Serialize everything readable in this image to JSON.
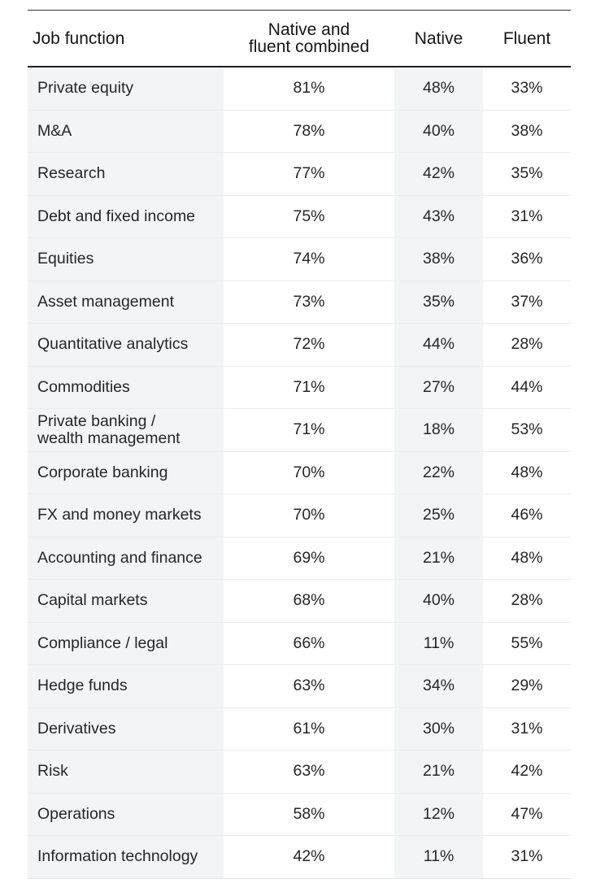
{
  "chart_data": {
    "type": "table",
    "columns": [
      "Job function",
      "Native and fluent combined",
      "Native",
      "Fluent"
    ],
    "rows": [
      {
        "job": "Private equity",
        "combined": "81%",
        "native": "48%",
        "fluent": "33%"
      },
      {
        "job": "M&A",
        "combined": "78%",
        "native": "40%",
        "fluent": "38%"
      },
      {
        "job": "Research",
        "combined": "77%",
        "native": "42%",
        "fluent": "35%"
      },
      {
        "job": "Debt and fixed income",
        "combined": "75%",
        "native": "43%",
        "fluent": "31%"
      },
      {
        "job": "Equities",
        "combined": "74%",
        "native": "38%",
        "fluent": "36%"
      },
      {
        "job": "Asset management",
        "combined": "73%",
        "native": "35%",
        "fluent": "37%"
      },
      {
        "job": "Quantitative analytics",
        "combined": "72%",
        "native": "44%",
        "fluent": "28%"
      },
      {
        "job": "Commodities",
        "combined": "71%",
        "native": "27%",
        "fluent": "44%"
      },
      {
        "job": "Private banking /\nwealth management",
        "combined": "71%",
        "native": "18%",
        "fluent": "53%"
      },
      {
        "job": "Corporate banking",
        "combined": "70%",
        "native": "22%",
        "fluent": "48%"
      },
      {
        "job": "FX and money markets",
        "combined": "70%",
        "native": "25%",
        "fluent": "46%"
      },
      {
        "job": "Accounting and finance",
        "combined": "69%",
        "native": "21%",
        "fluent": "48%"
      },
      {
        "job": "Capital markets",
        "combined": "68%",
        "native": "40%",
        "fluent": "28%"
      },
      {
        "job": "Compliance / legal",
        "combined": "66%",
        "native": "11%",
        "fluent": "55%"
      },
      {
        "job": "Hedge funds",
        "combined": "63%",
        "native": "34%",
        "fluent": "29%"
      },
      {
        "job": "Derivatives",
        "combined": "61%",
        "native": "30%",
        "fluent": "31%"
      },
      {
        "job": "Risk",
        "combined": "63%",
        "native": "21%",
        "fluent": "42%"
      },
      {
        "job": "Operations",
        "combined": "58%",
        "native": "12%",
        "fluent": "47%"
      },
      {
        "job": "Information technology",
        "combined": "42%",
        "native": "11%",
        "fluent": "31%"
      }
    ]
  },
  "colors": {
    "shaded_column": "#f2f4f6",
    "header_rule": "#1f1f1f",
    "text": "#262626"
  }
}
